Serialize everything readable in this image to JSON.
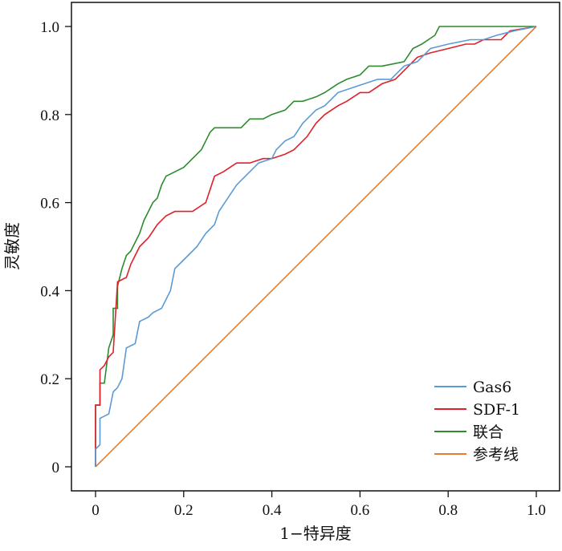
{
  "chart_data": {
    "type": "line",
    "xlabel": "1−特异度",
    "ylabel": "灵敏度",
    "xlim": [
      0,
      1
    ],
    "ylim": [
      0,
      1
    ],
    "x_ticks": [
      "0",
      "0.2",
      "0.4",
      "0.6",
      "0.8",
      "1.0"
    ],
    "y_ticks": [
      "0",
      "0.2",
      "0.4",
      "0.6",
      "0.8",
      "1.0"
    ],
    "grid": false,
    "legend_position": "bottom-right",
    "series": [
      {
        "name": "Gas6",
        "color": "#5b9bd5",
        "points": [
          [
            0,
            0
          ],
          [
            0,
            0.04
          ],
          [
            0.01,
            0.05
          ],
          [
            0.01,
            0.11
          ],
          [
            0.03,
            0.12
          ],
          [
            0.04,
            0.17
          ],
          [
            0.05,
            0.18
          ],
          [
            0.06,
            0.2
          ],
          [
            0.07,
            0.27
          ],
          [
            0.09,
            0.28
          ],
          [
            0.1,
            0.33
          ],
          [
            0.12,
            0.34
          ],
          [
            0.13,
            0.35
          ],
          [
            0.15,
            0.36
          ],
          [
            0.16,
            0.38
          ],
          [
            0.17,
            0.4
          ],
          [
            0.18,
            0.45
          ],
          [
            0.19,
            0.46
          ],
          [
            0.2,
            0.47
          ],
          [
            0.21,
            0.48
          ],
          [
            0.23,
            0.5
          ],
          [
            0.25,
            0.53
          ],
          [
            0.27,
            0.55
          ],
          [
            0.28,
            0.58
          ],
          [
            0.3,
            0.61
          ],
          [
            0.32,
            0.64
          ],
          [
            0.35,
            0.67
          ],
          [
            0.37,
            0.69
          ],
          [
            0.4,
            0.7
          ],
          [
            0.41,
            0.72
          ],
          [
            0.43,
            0.74
          ],
          [
            0.45,
            0.75
          ],
          [
            0.47,
            0.78
          ],
          [
            0.5,
            0.81
          ],
          [
            0.52,
            0.82
          ],
          [
            0.55,
            0.85
          ],
          [
            0.58,
            0.86
          ],
          [
            0.61,
            0.87
          ],
          [
            0.64,
            0.88
          ],
          [
            0.67,
            0.88
          ],
          [
            0.7,
            0.91
          ],
          [
            0.73,
            0.92
          ],
          [
            0.76,
            0.95
          ],
          [
            0.8,
            0.96
          ],
          [
            0.85,
            0.97
          ],
          [
            0.88,
            0.97
          ],
          [
            0.91,
            0.98
          ],
          [
            0.95,
            0.99
          ],
          [
            1.0,
            1.0
          ]
        ]
      },
      {
        "name": "SDF-1",
        "color": "#e0202a",
        "points": [
          [
            0,
            0
          ],
          [
            0,
            0.14
          ],
          [
            0.01,
            0.14
          ],
          [
            0.01,
            0.22
          ],
          [
            0.02,
            0.23
          ],
          [
            0.03,
            0.25
          ],
          [
            0.04,
            0.26
          ],
          [
            0.05,
            0.42
          ],
          [
            0.07,
            0.43
          ],
          [
            0.08,
            0.46
          ],
          [
            0.09,
            0.48
          ],
          [
            0.1,
            0.5
          ],
          [
            0.12,
            0.52
          ],
          [
            0.14,
            0.55
          ],
          [
            0.16,
            0.57
          ],
          [
            0.18,
            0.58
          ],
          [
            0.2,
            0.58
          ],
          [
            0.22,
            0.58
          ],
          [
            0.25,
            0.6
          ],
          [
            0.27,
            0.66
          ],
          [
            0.29,
            0.67
          ],
          [
            0.32,
            0.69
          ],
          [
            0.35,
            0.69
          ],
          [
            0.38,
            0.7
          ],
          [
            0.4,
            0.7
          ],
          [
            0.43,
            0.71
          ],
          [
            0.45,
            0.72
          ],
          [
            0.48,
            0.75
          ],
          [
            0.5,
            0.78
          ],
          [
            0.52,
            0.8
          ],
          [
            0.55,
            0.82
          ],
          [
            0.57,
            0.83
          ],
          [
            0.6,
            0.85
          ],
          [
            0.62,
            0.85
          ],
          [
            0.65,
            0.87
          ],
          [
            0.68,
            0.88
          ],
          [
            0.71,
            0.91
          ],
          [
            0.73,
            0.93
          ],
          [
            0.76,
            0.94
          ],
          [
            0.8,
            0.95
          ],
          [
            0.84,
            0.96
          ],
          [
            0.86,
            0.96
          ],
          [
            0.88,
            0.97
          ],
          [
            0.92,
            0.97
          ],
          [
            0.94,
            0.99
          ],
          [
            1.0,
            1.0
          ]
        ]
      },
      {
        "name": "联合",
        "color": "#2e8b2e",
        "points": [
          [
            0,
            0
          ],
          [
            0,
            0.14
          ],
          [
            0.01,
            0.14
          ],
          [
            0.01,
            0.19
          ],
          [
            0.02,
            0.19
          ],
          [
            0.03,
            0.27
          ],
          [
            0.04,
            0.3
          ],
          [
            0.04,
            0.36
          ],
          [
            0.05,
            0.36
          ],
          [
            0.05,
            0.41
          ],
          [
            0.06,
            0.45
          ],
          [
            0.07,
            0.48
          ],
          [
            0.08,
            0.49
          ],
          [
            0.09,
            0.51
          ],
          [
            0.1,
            0.53
          ],
          [
            0.11,
            0.56
          ],
          [
            0.12,
            0.58
          ],
          [
            0.13,
            0.6
          ],
          [
            0.14,
            0.61
          ],
          [
            0.15,
            0.64
          ],
          [
            0.16,
            0.66
          ],
          [
            0.18,
            0.67
          ],
          [
            0.2,
            0.68
          ],
          [
            0.21,
            0.69
          ],
          [
            0.22,
            0.7
          ],
          [
            0.24,
            0.72
          ],
          [
            0.25,
            0.74
          ],
          [
            0.26,
            0.76
          ],
          [
            0.27,
            0.77
          ],
          [
            0.3,
            0.77
          ],
          [
            0.33,
            0.77
          ],
          [
            0.35,
            0.79
          ],
          [
            0.38,
            0.79
          ],
          [
            0.4,
            0.8
          ],
          [
            0.43,
            0.81
          ],
          [
            0.45,
            0.83
          ],
          [
            0.47,
            0.83
          ],
          [
            0.5,
            0.84
          ],
          [
            0.52,
            0.85
          ],
          [
            0.55,
            0.87
          ],
          [
            0.57,
            0.88
          ],
          [
            0.6,
            0.89
          ],
          [
            0.62,
            0.91
          ],
          [
            0.65,
            0.91
          ],
          [
            0.7,
            0.92
          ],
          [
            0.72,
            0.95
          ],
          [
            0.74,
            0.96
          ],
          [
            0.77,
            0.98
          ],
          [
            0.78,
            1.0
          ],
          [
            0.85,
            1.0
          ],
          [
            0.88,
            1.0
          ],
          [
            1.0,
            1.0
          ]
        ]
      },
      {
        "name": "参考线",
        "color": "#e87a2d",
        "points": [
          [
            0,
            0
          ],
          [
            1,
            1
          ]
        ]
      }
    ]
  }
}
